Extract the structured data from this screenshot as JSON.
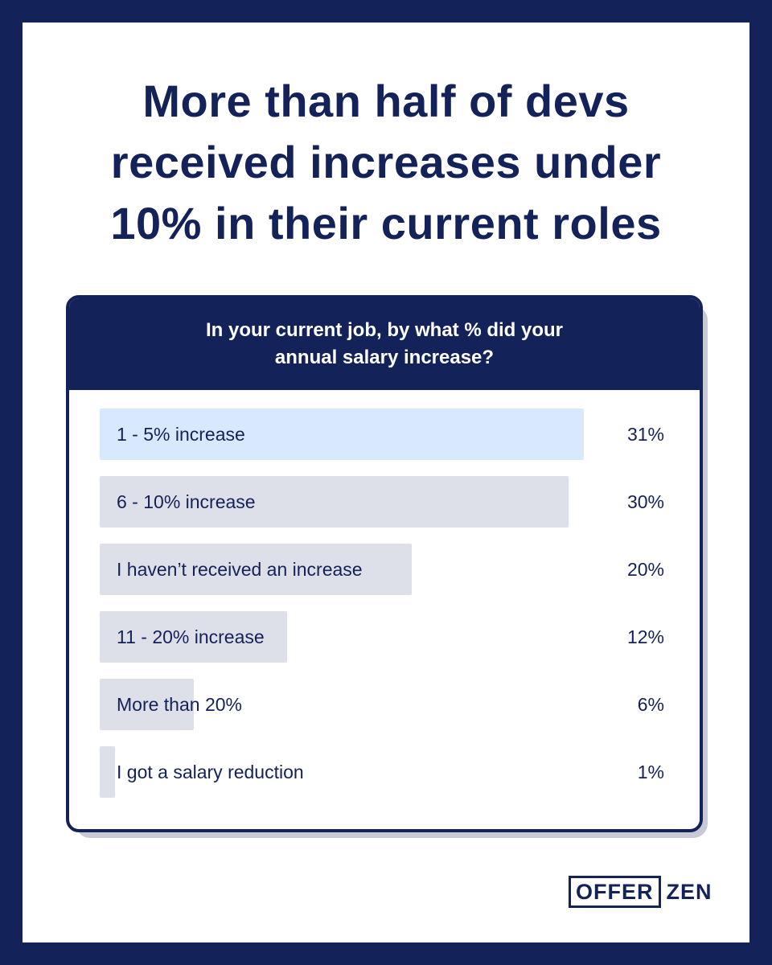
{
  "headline": {
    "lines": [
      "More than half of devs",
      "received increases under",
      "10% in their current roles"
    ]
  },
  "chart_data": {
    "type": "bar",
    "orientation": "horizontal",
    "title_lines": [
      "In your current job, by what % did your",
      "annual salary increase?"
    ],
    "categories": [
      "1 - 5% increase",
      "6 - 10% increase",
      "I haven’t received an increase",
      "11 - 20% increase",
      "More than 20%",
      "I got a salary reduction"
    ],
    "values": [
      31,
      30,
      20,
      12,
      6,
      1
    ],
    "value_labels": [
      "31%",
      "30%",
      "20%",
      "12%",
      "6%",
      "1%"
    ],
    "unit": "%",
    "xlim": [
      0,
      31
    ],
    "grid": false,
    "highlight_index": 0,
    "colors": {
      "bar": "#dde0e8",
      "highlight": "#d8e9fd",
      "text": "#14225a",
      "header": "#14225a"
    }
  },
  "logo": {
    "boxed": "OFFER",
    "rest": "ZEN"
  }
}
